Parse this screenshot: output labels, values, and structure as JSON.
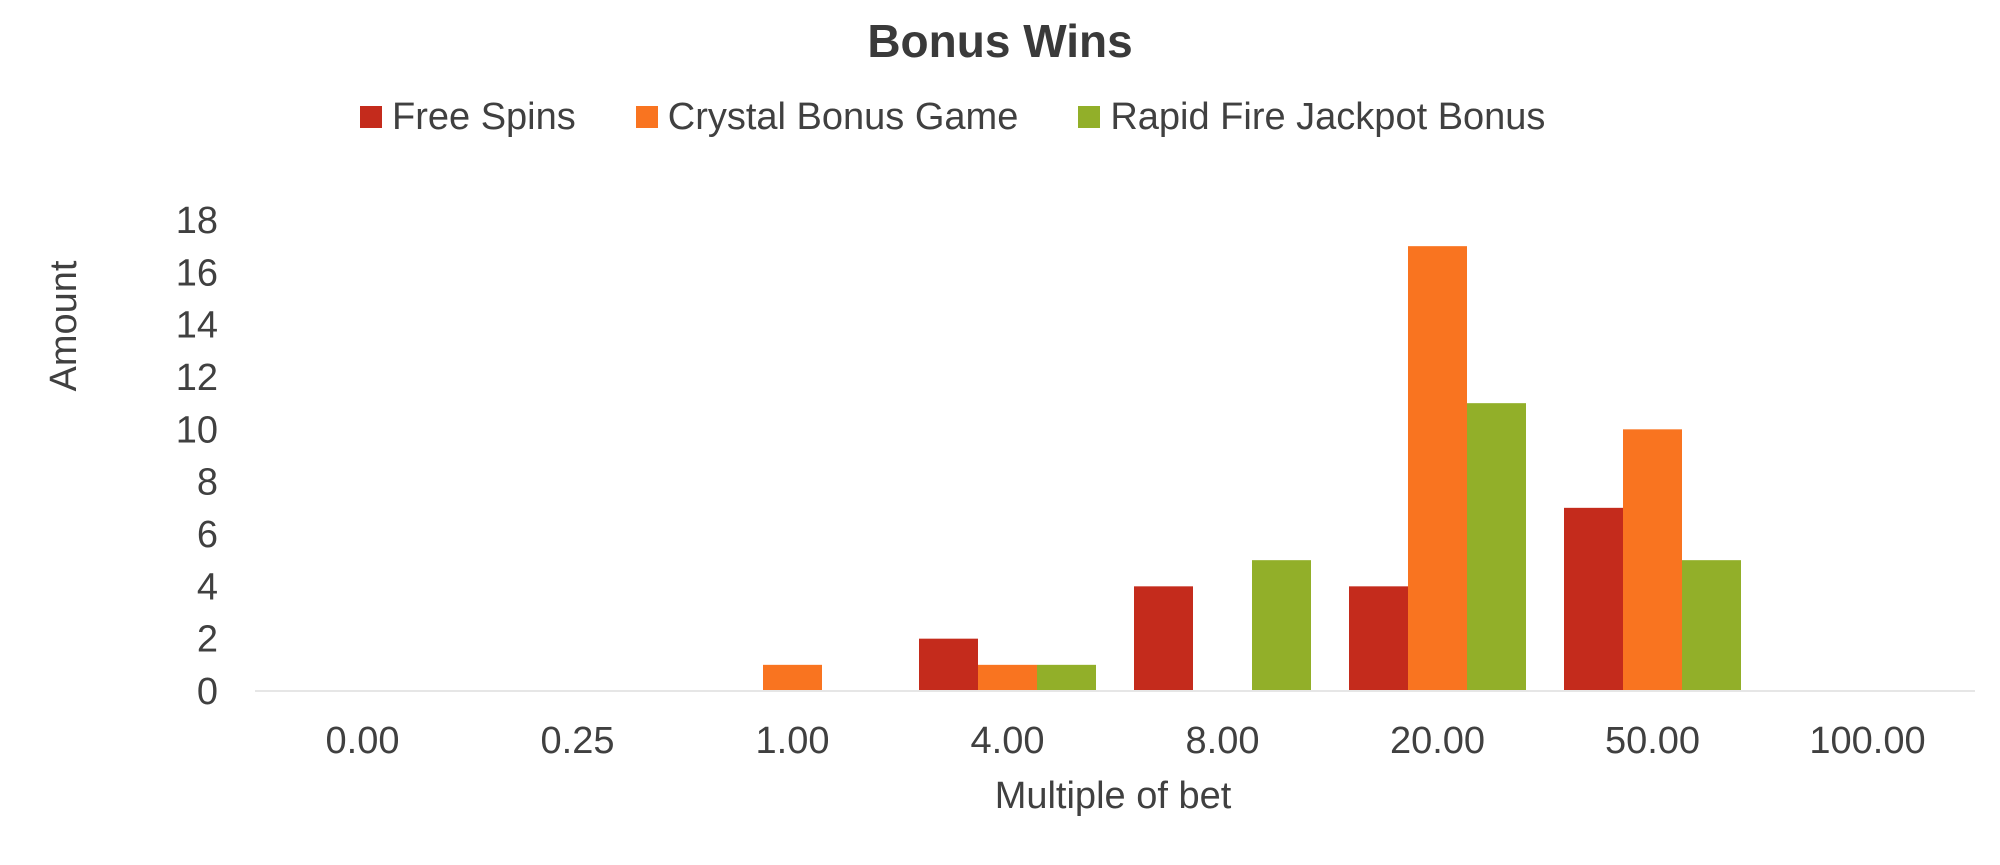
{
  "chart_data": {
    "type": "bar",
    "title": "Bonus Wins",
    "xlabel": "Multiple of bet",
    "ylabel": "Amount",
    "ylim": [
      0,
      18
    ],
    "yticks": [
      "0",
      "2",
      "4",
      "6",
      "8",
      "10",
      "12",
      "14",
      "16",
      "18"
    ],
    "grid": false,
    "legend_position": "top",
    "categories": [
      "0.00",
      "0.25",
      "1.00",
      "4.00",
      "8.00",
      "20.00",
      "50.00",
      "100.00"
    ],
    "series": [
      {
        "name": "Free Spins",
        "color": "#C42B1C",
        "values": [
          0,
          0,
          0,
          2,
          4,
          4,
          7,
          0
        ]
      },
      {
        "name": "Crystal Bonus Game",
        "color": "#F97420",
        "values": [
          0,
          0,
          1,
          1,
          0,
          17,
          10,
          0
        ]
      },
      {
        "name": "Rapid Fire Jackpot Bonus",
        "color": "#92AF29",
        "values": [
          0,
          0,
          0,
          1,
          5,
          11,
          5,
          0
        ]
      }
    ]
  }
}
